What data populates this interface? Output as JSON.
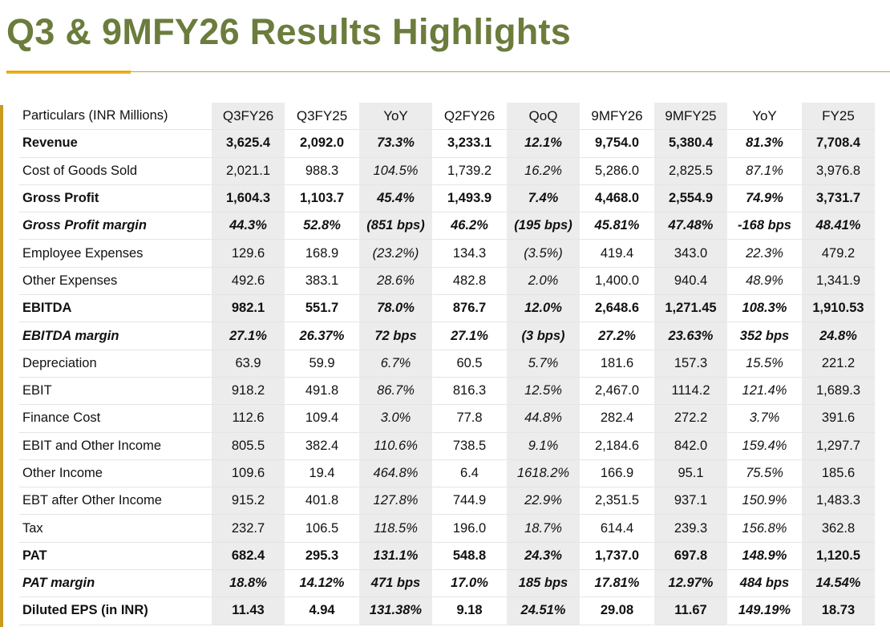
{
  "title": "Q3 & 9MFY26 Results Highlights",
  "colors": {
    "title": "#6b7c3c",
    "accent_bar": "#f2b51c",
    "rule": "#b8a24a",
    "shade": "#ececec"
  },
  "table": {
    "headers": [
      "Particulars  (INR Millions)",
      "Q3FY26",
      "Q3FY25",
      "YoY",
      "Q2FY26",
      "QoQ",
      "9MFY26",
      "9MFY25",
      "YoY",
      "FY25"
    ],
    "rows": [
      {
        "label": "Revenue",
        "values": [
          "3,625.4",
          "2,092.0",
          "73.3%",
          "3,233.1",
          "12.1%",
          "9,754.0",
          "5,380.4",
          "81.3%",
          "7,708.4"
        ]
      },
      {
        "label": "Cost of Goods Sold",
        "values": [
          "2,021.1",
          "988.3",
          "104.5%",
          "1,739.2",
          "16.2%",
          "5,286.0",
          "2,825.5",
          "87.1%",
          "3,976.8"
        ]
      },
      {
        "label": "Gross Profit",
        "values": [
          "1,604.3",
          "1,103.7",
          "45.4%",
          "1,493.9",
          "7.4%",
          "4,468.0",
          "2,554.9",
          "74.9%",
          "3,731.7"
        ]
      },
      {
        "label": "Gross Profit margin",
        "values": [
          "44.3%",
          "52.8%",
          "(851 bps)",
          "46.2%",
          "(195 bps)",
          "45.81%",
          "47.48%",
          "-168 bps",
          "48.41%"
        ]
      },
      {
        "label": "Employee Expenses",
        "values": [
          "129.6",
          "168.9",
          "(23.2%)",
          "134.3",
          "(3.5%)",
          "419.4",
          "343.0",
          "22.3%",
          "479.2"
        ]
      },
      {
        "label": "Other Expenses",
        "values": [
          "492.6",
          "383.1",
          "28.6%",
          "482.8",
          "2.0%",
          "1,400.0",
          "940.4",
          "48.9%",
          "1,341.9"
        ]
      },
      {
        "label": "EBITDA",
        "values": [
          "982.1",
          "551.7",
          "78.0%",
          "876.7",
          "12.0%",
          "2,648.6",
          "1,271.45",
          "108.3%",
          "1,910.53"
        ]
      },
      {
        "label": "EBITDA margin",
        "values": [
          "27.1%",
          "26.37%",
          "72 bps",
          "27.1%",
          "(3 bps)",
          "27.2%",
          "23.63%",
          "352 bps",
          "24.8%"
        ]
      },
      {
        "label": "Depreciation",
        "values": [
          "63.9",
          "59.9",
          "6.7%",
          "60.5",
          "5.7%",
          "181.6",
          "157.3",
          "15.5%",
          "221.2"
        ]
      },
      {
        "label": "EBIT",
        "values": [
          "918.2",
          "491.8",
          "86.7%",
          "816.3",
          "12.5%",
          "2,467.0",
          "1114.2",
          "121.4%",
          "1,689.3"
        ]
      },
      {
        "label": "Finance Cost",
        "values": [
          "112.6",
          "109.4",
          "3.0%",
          "77.8",
          "44.8%",
          "282.4",
          "272.2",
          "3.7%",
          "391.6"
        ]
      },
      {
        "label": "EBIT and Other Income",
        "values": [
          "805.5",
          "382.4",
          "110.6%",
          "738.5",
          "9.1%",
          "2,184.6",
          "842.0",
          "159.4%",
          "1,297.7"
        ]
      },
      {
        "label": "Other Income",
        "values": [
          "109.6",
          "19.4",
          "464.8%",
          "6.4",
          "1618.2%",
          "166.9",
          "95.1",
          "75.5%",
          "185.6"
        ]
      },
      {
        "label": "EBT after Other Income",
        "values": [
          "915.2",
          "401.8",
          "127.8%",
          "744.9",
          "22.9%",
          "2,351.5",
          "937.1",
          "150.9%",
          "1,483.3"
        ]
      },
      {
        "label": "Tax",
        "values": [
          "232.7",
          "106.5",
          "118.5%",
          "196.0",
          "18.7%",
          "614.4",
          "239.3",
          "156.8%",
          "362.8"
        ]
      },
      {
        "label": "PAT",
        "values": [
          "682.4",
          "295.3",
          "131.1%",
          "548.8",
          "24.3%",
          "1,737.0",
          "697.8",
          "148.9%",
          "1,120.5"
        ]
      },
      {
        "label": "PAT margin",
        "values": [
          "18.8%",
          "14.12%",
          "471 bps",
          "17.0%",
          "185 bps",
          "17.81%",
          "12.97%",
          "484 bps",
          "14.54%"
        ]
      },
      {
        "label": "Diluted EPS (in INR)",
        "values": [
          "11.43",
          "4.94",
          "131.38%",
          "9.18",
          "24.51%",
          "29.08",
          "11.67",
          "149.19%",
          "18.73"
        ]
      }
    ]
  }
}
